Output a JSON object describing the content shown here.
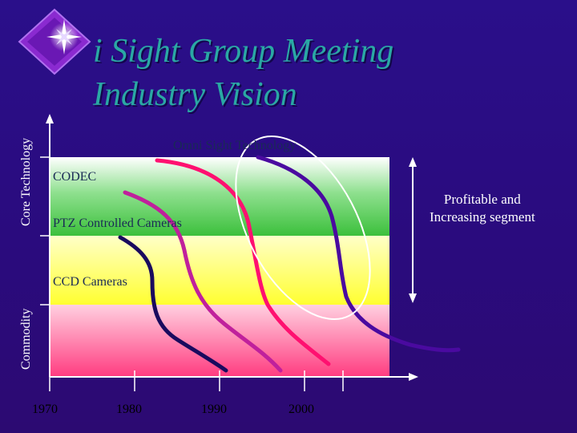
{
  "title": {
    "line1": "i Sight Group Meeting",
    "line2": "Industry Vision"
  },
  "axis": {
    "top_label": "Core Technology",
    "bottom_label": "Commodity"
  },
  "stages": {
    "omni": "Omni Sight Technology",
    "codec": "CODEC",
    "ptz": "PTZ Controlled Cameras",
    "ccd": "CCD Cameras"
  },
  "side_note": {
    "line1": "Profitable  and",
    "line2": "Increasing segment"
  },
  "years": [
    "1970",
    "1980",
    "1990",
    "2000"
  ],
  "colors": {
    "title": "#2aa8a4",
    "band_green": "#3cc03c",
    "band_yellow": "#ffff40",
    "band_pink": "#ff4080",
    "curve_dark": "#1a0a5e",
    "curve_magenta": "#c0209c",
    "curve_pink": "#ff1070",
    "curve_violet": "#4a0aa0"
  }
}
